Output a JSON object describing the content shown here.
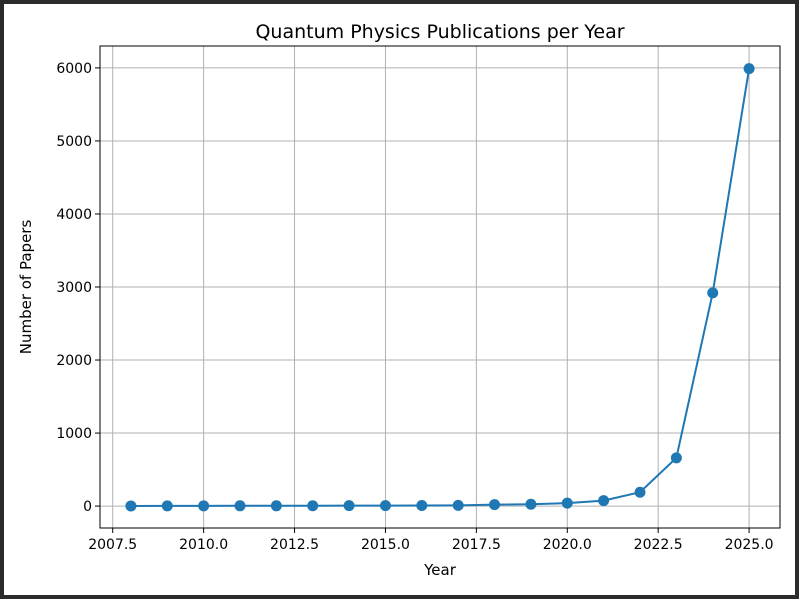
{
  "chart_data": {
    "type": "line",
    "title": "Quantum Physics Publications per Year",
    "xlabel": "Year",
    "ylabel": "Number of Papers",
    "xlim": [
      2007.15,
      2025.85
    ],
    "ylim": [
      -300,
      6300
    ],
    "xticks": [
      2007.5,
      2010.0,
      2012.5,
      2015.0,
      2017.5,
      2020.0,
      2022.5,
      2025.0
    ],
    "xtick_labels": [
      "2007.5",
      "2010.0",
      "2012.5",
      "2015.0",
      "2017.5",
      "2020.0",
      "2022.5",
      "2025.0"
    ],
    "yticks": [
      0,
      1000,
      2000,
      3000,
      4000,
      5000,
      6000
    ],
    "ytick_labels": [
      "0",
      "1000",
      "2000",
      "3000",
      "4000",
      "5000",
      "6000"
    ],
    "grid": true,
    "series": [
      {
        "color": "#1f77b4",
        "marker": "circle",
        "x": [
          2008,
          2009,
          2010,
          2011,
          2012,
          2013,
          2014,
          2015,
          2016,
          2017,
          2018,
          2019,
          2020,
          2021,
          2022,
          2023,
          2024,
          2025
        ],
        "y": [
          2,
          3,
          3,
          4,
          4,
          5,
          6,
          7,
          8,
          10,
          20,
          25,
          40,
          75,
          190,
          660,
          2920,
          5990
        ]
      }
    ]
  }
}
